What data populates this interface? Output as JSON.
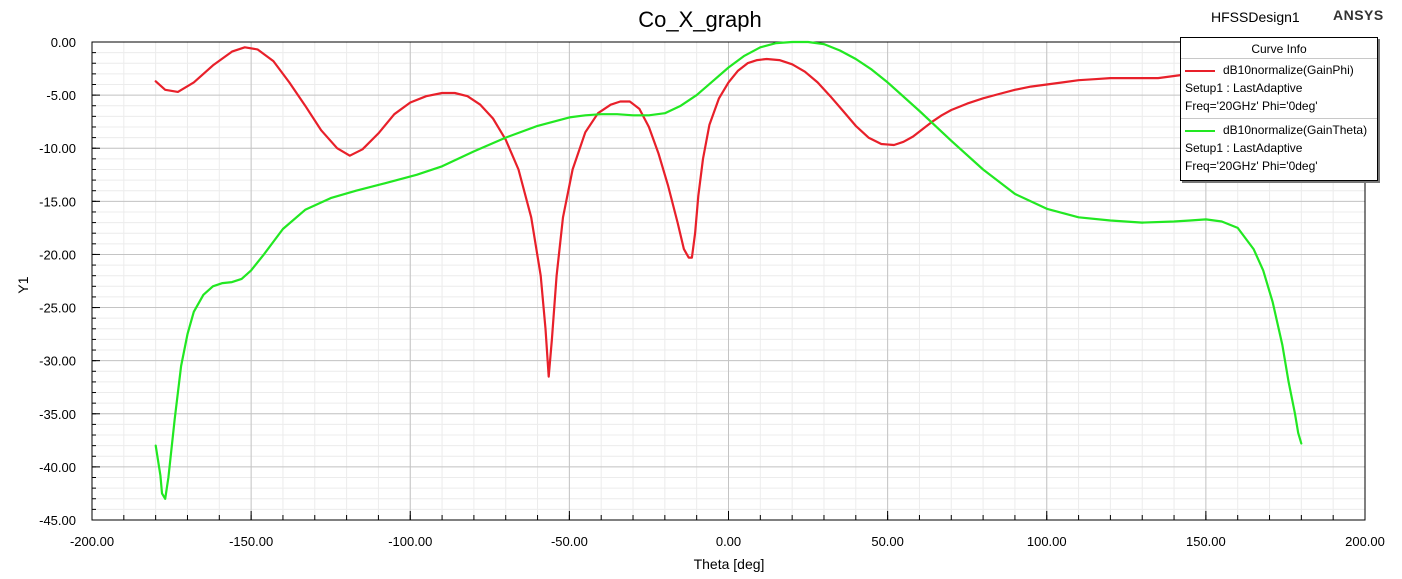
{
  "header": {
    "design_name": "HFSSDesign1",
    "brand": "ANSYS"
  },
  "legend": {
    "title": "Curve Info",
    "entries": [
      {
        "name": "dB10normalize(GainPhi)",
        "setup": "Setup1 : LastAdaptive",
        "freq": "Freq='20GHz' Phi='0deg'",
        "color": "#e8202a"
      },
      {
        "name": "dB10normalize(GainTheta)",
        "setup": "Setup1 : LastAdaptive",
        "freq": "Freq='20GHz' Phi='0deg'",
        "color": "#22e822"
      }
    ]
  },
  "chart_data": {
    "type": "line",
    "title": "Co_X_graph",
    "xlabel": "Theta [deg]",
    "ylabel": "Y1",
    "xlim": [
      -200,
      200
    ],
    "ylim": [
      -45,
      0
    ],
    "xticks": [
      -200,
      -150,
      -100,
      -50,
      0,
      50,
      100,
      150,
      200
    ],
    "xtick_labels": [
      "-200.00",
      "-150.00",
      "-100.00",
      "-50.00",
      "0.00",
      "50.00",
      "100.00",
      "150.00",
      "200.00"
    ],
    "yticks": [
      0,
      -5,
      -10,
      -15,
      -20,
      -25,
      -30,
      -35,
      -40,
      -45
    ],
    "ytick_labels": [
      "0.00",
      "-5.00",
      "-10.00",
      "-15.00",
      "-20.00",
      "-25.00",
      "-30.00",
      "-35.00",
      "-40.00",
      "-45.00"
    ],
    "grid": true,
    "legend_position": "top-right",
    "series": [
      {
        "name": "dB10normalize(GainPhi)",
        "color": "#e8202a",
        "x": [
          -180,
          -177,
          -173,
          -168,
          -162,
          -156,
          -152,
          -148,
          -143,
          -138,
          -133,
          -128,
          -123,
          -119,
          -115,
          -110,
          -105,
          -100,
          -95,
          -90,
          -86,
          -82,
          -78,
          -74,
          -70,
          -66,
          -62,
          -59,
          -57.5,
          -56.5,
          -55.5,
          -54,
          -52,
          -49,
          -45,
          -41,
          -37,
          -34,
          -31,
          -28,
          -25,
          -22,
          -19,
          -16,
          -14,
          -12.5,
          -11.5,
          -10.5,
          -9.5,
          -8,
          -6,
          -3,
          0,
          3,
          6,
          9,
          12,
          16,
          20,
          24,
          28,
          32,
          36,
          40,
          44,
          48,
          52,
          55,
          58,
          61,
          64,
          67,
          70,
          75,
          80,
          85,
          90,
          95,
          100,
          105,
          110,
          115,
          120,
          125,
          130,
          135,
          140,
          145,
          150
        ],
        "y": [
          -3.7,
          -4.5,
          -4.7,
          -3.8,
          -2.2,
          -0.9,
          -0.5,
          -0.7,
          -1.8,
          -3.8,
          -6.0,
          -8.3,
          -10.0,
          -10.7,
          -10.1,
          -8.6,
          -6.8,
          -5.7,
          -5.1,
          -4.8,
          -4.8,
          -5.1,
          -5.9,
          -7.2,
          -9.2,
          -12.0,
          -16.5,
          -22.0,
          -27.0,
          -31.5,
          -28.0,
          -22.0,
          -16.5,
          -12.0,
          -8.5,
          -6.7,
          -5.9,
          -5.6,
          -5.6,
          -6.3,
          -8.0,
          -10.5,
          -13.5,
          -17.0,
          -19.5,
          -20.3,
          -20.3,
          -18.0,
          -14.5,
          -11.0,
          -7.8,
          -5.3,
          -3.8,
          -2.7,
          -2.0,
          -1.7,
          -1.6,
          -1.7,
          -2.1,
          -2.8,
          -3.8,
          -5.1,
          -6.5,
          -7.9,
          -9.0,
          -9.6,
          -9.7,
          -9.4,
          -8.9,
          -8.2,
          -7.5,
          -6.9,
          -6.4,
          -5.8,
          -5.3,
          -4.9,
          -4.5,
          -4.2,
          -4.0,
          -3.8,
          -3.6,
          -3.5,
          -3.4,
          -3.4,
          -3.4,
          -3.4,
          -3.2,
          -3.0,
          -2.8
        ]
      },
      {
        "name": "dB10normalize(GainTheta)",
        "color": "#22e822",
        "x": [
          -180,
          -178.5,
          -178,
          -177,
          -176,
          -174,
          -172,
          -170,
          -168,
          -165,
          -162,
          -159,
          -156,
          -153,
          -150,
          -146,
          -140,
          -133,
          -125,
          -117,
          -108,
          -98,
          -90,
          -80,
          -70,
          -60,
          -50,
          -45,
          -40,
          -35,
          -30,
          -25,
          -20,
          -15,
          -10,
          -5,
          0,
          5,
          10,
          15,
          20,
          25,
          30,
          35,
          40,
          45,
          50,
          60,
          70,
          80,
          90,
          100,
          110,
          120,
          130,
          140,
          145,
          150,
          155,
          160,
          165,
          168,
          171,
          174,
          176,
          178,
          179,
          180
        ],
        "y": [
          -38.0,
          -40.8,
          -42.5,
          -43.0,
          -41.0,
          -35.5,
          -30.5,
          -27.5,
          -25.4,
          -23.8,
          -23.0,
          -22.7,
          -22.6,
          -22.3,
          -21.5,
          -20.0,
          -17.6,
          -15.8,
          -14.7,
          -14.0,
          -13.3,
          -12.5,
          -11.7,
          -10.3,
          -9.0,
          -7.9,
          -7.1,
          -6.9,
          -6.8,
          -6.8,
          -6.9,
          -6.9,
          -6.7,
          -6.0,
          -5.0,
          -3.7,
          -2.4,
          -1.3,
          -0.5,
          -0.1,
          0.0,
          0.0,
          -0.2,
          -0.8,
          -1.6,
          -2.6,
          -3.8,
          -6.5,
          -9.3,
          -12.0,
          -14.3,
          -15.7,
          -16.5,
          -16.8,
          -17.0,
          -16.9,
          -16.8,
          -16.7,
          -16.9,
          -17.5,
          -19.5,
          -21.5,
          -24.5,
          -28.5,
          -32.0,
          -35.0,
          -36.8,
          -37.8
        ]
      }
    ]
  }
}
